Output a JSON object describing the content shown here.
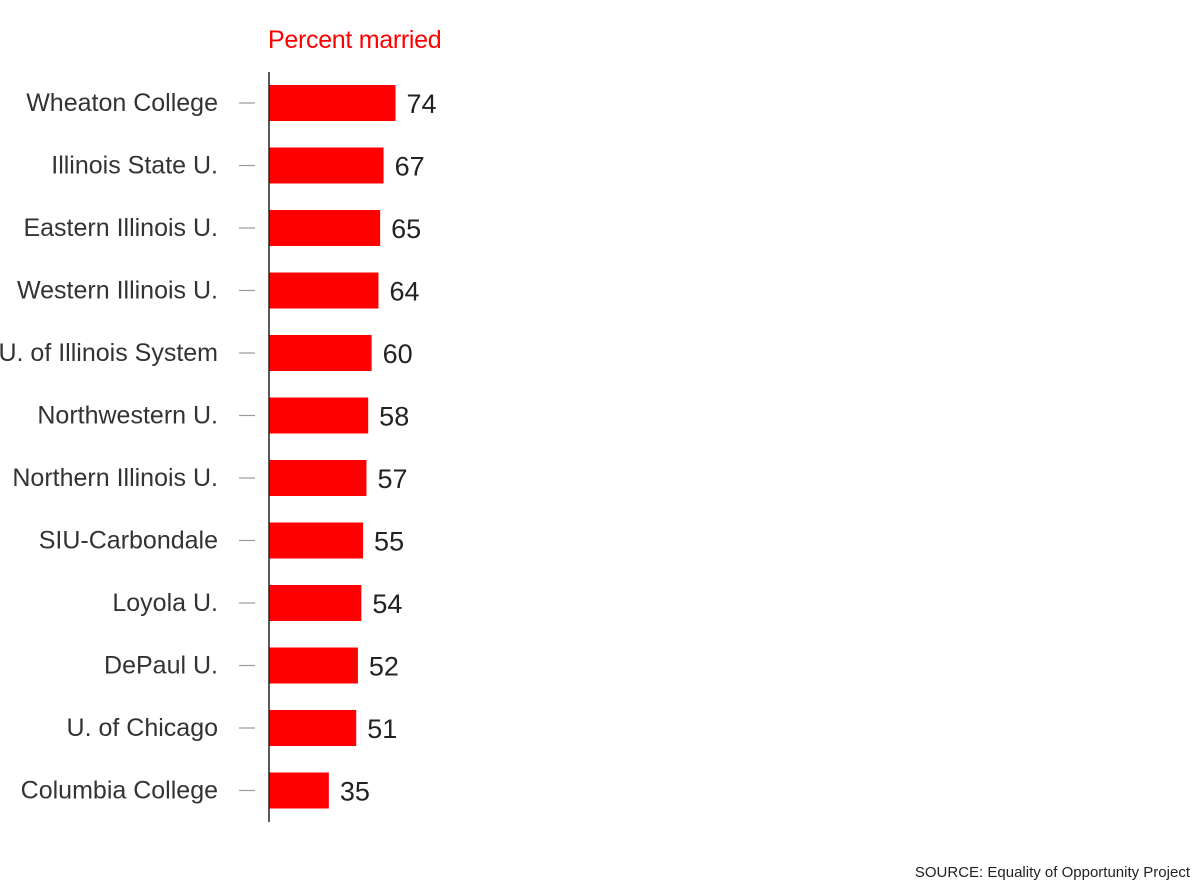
{
  "chart_data": {
    "type": "bar",
    "orientation": "horizontal",
    "title": "Percent married",
    "categories": [
      "Wheaton College",
      "Illinois State U.",
      "Eastern Illinois U.",
      "Western Illinois U.",
      "U. of Illinois System",
      "Northwestern U.",
      "Northern Illinois U.",
      "SIU-Carbondale",
      "Loyola U.",
      "DePaul U.",
      "U. of Chicago",
      "Columbia College"
    ],
    "values": [
      74,
      67,
      65,
      64,
      60,
      58,
      57,
      55,
      54,
      52,
      51,
      35
    ],
    "xlim": [
      0,
      100
    ],
    "grid": false,
    "data_labels": true,
    "bar_color": "#ff0000",
    "axis_color": "#222222",
    "tick_color": "#999999"
  },
  "source": "SOURCE: Equality of Opportunity Project"
}
